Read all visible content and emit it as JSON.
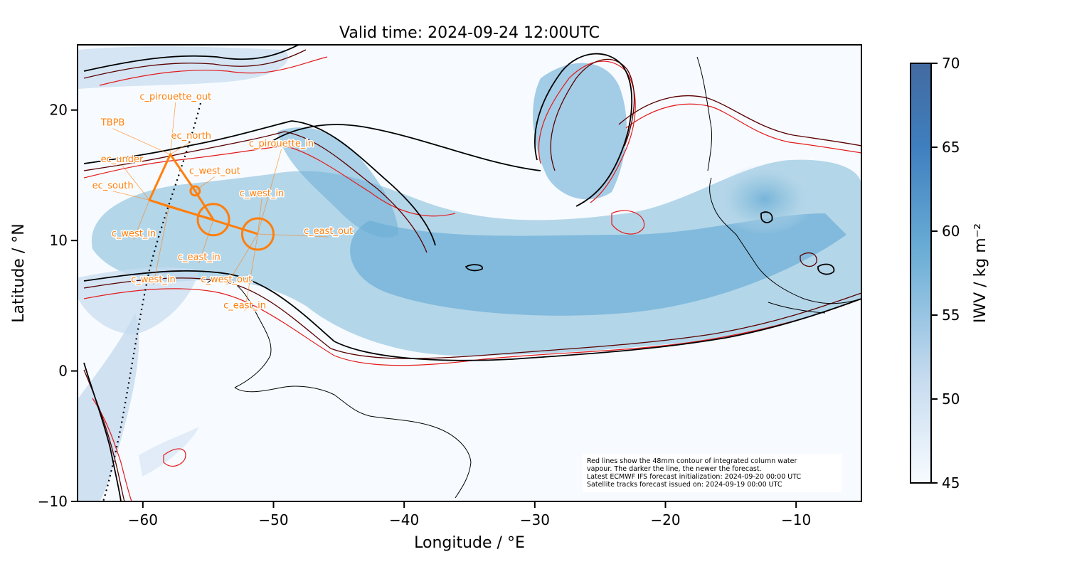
{
  "title": "Valid time: 2024-09-24 12:00UTC",
  "x_axis": {
    "label": "Longitude / °E",
    "ticks": [
      -60,
      -50,
      -40,
      -30,
      -20,
      -10
    ],
    "tick_labels": [
      "−60",
      "−50",
      "−40",
      "−30",
      "−20",
      "−10"
    ],
    "range": [
      -65,
      -5
    ]
  },
  "y_axis": {
    "label": "Latitude / °N",
    "ticks": [
      -10,
      0,
      10,
      20
    ],
    "tick_labels": [
      "−10",
      "0",
      "10",
      "20"
    ],
    "range": [
      -10,
      25
    ]
  },
  "colorbar": {
    "label": "IWV / kg m⁻²",
    "ticks": [
      45,
      50,
      55,
      60,
      65,
      70
    ],
    "tick_labels": [
      "45",
      "50",
      "55",
      "60",
      "65",
      "70"
    ],
    "range": [
      45,
      70
    ],
    "colors": [
      "#f7fbff",
      "#c6dbef",
      "#6baed6",
      "#2171b5",
      "#08519c"
    ]
  },
  "colors": {
    "flight_track": "#ff7f0e",
    "contour_newest": "#000000",
    "contour_mid": "#5a0000",
    "contour_oldest": "#e31a1c",
    "coastline": "#000000"
  },
  "note_lines": [
    "Red lines show the 48mm contour of integrated column water",
    "vapour. The darker the line, the newer the forecast.",
    "Latest ECMWF IFS forecast initialization: 2024-09-20 00:00 UTC",
    "Satellite tracks forecast issued on: 2024-09-19 00:00 UTC"
  ],
  "annotations": [
    {
      "text": "c_pirouette_out",
      "lon": -57.5,
      "lat": 20.8
    },
    {
      "text": "TBPB",
      "lon": -62.3,
      "lat": 18.8
    },
    {
      "text": "ec_north",
      "lon": -56.3,
      "lat": 17.8
    },
    {
      "text": "c_pirouette_in",
      "lon": -49.4,
      "lat": 17.2
    },
    {
      "text": "ec_under",
      "lon": -61.6,
      "lat": 16.0
    },
    {
      "text": "c_west_out",
      "lon": -54.5,
      "lat": 15.1
    },
    {
      "text": "ec_south",
      "lon": -62.3,
      "lat": 14.0
    },
    {
      "text": "c_west_in",
      "lon": -50.9,
      "lat": 13.4
    },
    {
      "text": "c_west_in",
      "lon": -60.7,
      "lat": 10.3
    },
    {
      "text": "c_east_out",
      "lon": -45.8,
      "lat": 10.5
    },
    {
      "text": "c_east_in",
      "lon": -55.7,
      "lat": 8.5
    },
    {
      "text": "c_west_in",
      "lon": -59.2,
      "lat": 6.8
    },
    {
      "text": "c_west_out",
      "lon": -53.6,
      "lat": 6.8
    },
    {
      "text": "c_east_in",
      "lon": -52.2,
      "lat": 4.8
    }
  ],
  "flight_track": {
    "path": [
      [
        -59.5,
        13.1
      ],
      [
        -57.9,
        16.6
      ],
      [
        -56.0,
        13.8
      ],
      [
        -54.6,
        11.6
      ],
      [
        -58.0,
        12.6
      ],
      [
        -59.5,
        13.1
      ],
      [
        -51.2,
        10.5
      ]
    ],
    "circles": [
      {
        "lon": -56.0,
        "lat": 13.8,
        "radius_deg": 0.35
      },
      {
        "lon": -54.6,
        "lat": 11.6,
        "radius_deg": 1.2
      },
      {
        "lon": -51.2,
        "lat": 10.5,
        "radius_deg": 1.2
      }
    ]
  }
}
